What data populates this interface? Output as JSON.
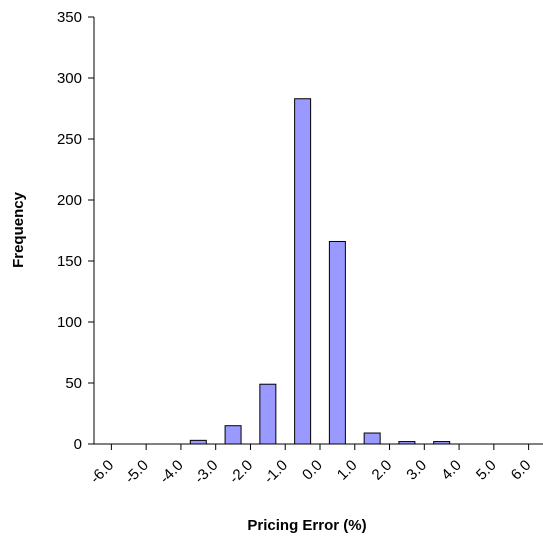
{
  "chart_data": {
    "type": "bar",
    "xlabel": "Pricing Error (%)",
    "ylabel": "Frequency",
    "ylim": [
      0,
      350
    ],
    "yticks": [
      0,
      50,
      100,
      150,
      200,
      250,
      300,
      350
    ],
    "xticks": [
      "-6.0",
      "-5.0",
      "-4.0",
      "-3.0",
      "-2.0",
      "-1.0",
      "0.0",
      "1.0",
      "2.0",
      "3.0",
      "4.0",
      "5.0",
      "6.0"
    ],
    "bin_width": 1.0,
    "bars": [
      {
        "x": -3.5,
        "value": 3
      },
      {
        "x": -2.5,
        "value": 15
      },
      {
        "x": -1.5,
        "value": 49
      },
      {
        "x": -0.5,
        "value": 283
      },
      {
        "x": 0.5,
        "value": 166
      },
      {
        "x": 1.5,
        "value": 9
      },
      {
        "x": 2.5,
        "value": 2
      },
      {
        "x": 3.5,
        "value": 2
      }
    ],
    "bar_color": "#9999ff",
    "bar_edge_color": "#000000",
    "grid": false,
    "legend": "none"
  }
}
